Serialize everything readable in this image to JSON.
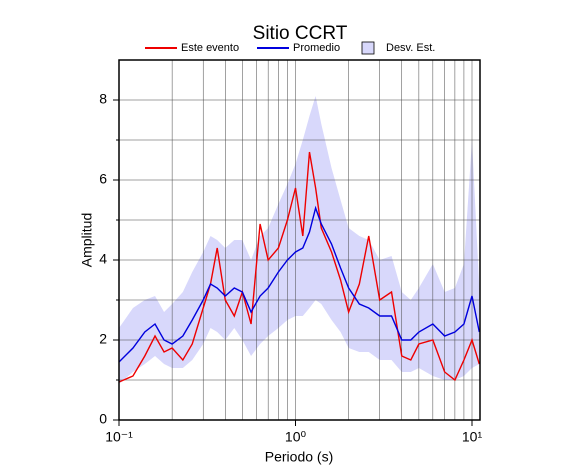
{
  "chart_data": {
    "type": "line",
    "title": "Sitio CCRT",
    "xlabel": "Periodo (s)",
    "ylabel": "Amplitud",
    "xscale": "log",
    "grid": true,
    "xlim": [
      0.1,
      11.1
    ],
    "ylim": [
      0,
      9
    ],
    "xticks": [
      {
        "value": 0.1,
        "label": "10⁻¹"
      },
      {
        "value": 1,
        "label": "10⁰"
      },
      {
        "value": 10,
        "label": "10¹"
      }
    ],
    "xminor": [
      0.2,
      0.3,
      0.4,
      0.5,
      0.6,
      0.7,
      0.8,
      0.9,
      2,
      3,
      4,
      5,
      6,
      7,
      8,
      9
    ],
    "yticks": [
      0,
      2,
      4,
      6,
      8
    ],
    "yminor": [
      1,
      3,
      5,
      7
    ],
    "x": [
      0.1,
      0.12,
      0.14,
      0.16,
      0.18,
      0.2,
      0.23,
      0.26,
      0.3,
      0.33,
      0.36,
      0.4,
      0.45,
      0.5,
      0.56,
      0.63,
      0.7,
      0.8,
      0.9,
      1.0,
      1.1,
      1.2,
      1.3,
      1.4,
      1.6,
      1.8,
      2.0,
      2.3,
      2.6,
      3.0,
      3.5,
      4,
      4.5,
      5,
      6,
      7,
      8,
      9,
      10,
      11
    ],
    "series": [
      {
        "name": "Este evento",
        "color": "#ee0000",
        "values": [
          0.95,
          1.1,
          1.6,
          2.1,
          1.7,
          1.8,
          1.5,
          1.9,
          2.8,
          3.4,
          4.3,
          3.0,
          2.6,
          3.2,
          2.4,
          4.9,
          4.0,
          4.3,
          5.0,
          5.8,
          4.6,
          6.7,
          5.8,
          4.8,
          4.2,
          3.5,
          2.7,
          3.4,
          4.6,
          3.0,
          3.2,
          1.6,
          1.5,
          1.9,
          2.0,
          1.2,
          1.0,
          1.5,
          2.0,
          1.4
        ]
      },
      {
        "name": "Promedio",
        "color": "#0000dd",
        "values": [
          1.45,
          1.8,
          2.2,
          2.4,
          2.0,
          1.9,
          2.1,
          2.5,
          3.0,
          3.4,
          3.3,
          3.1,
          3.3,
          3.2,
          2.7,
          3.1,
          3.3,
          3.7,
          4.0,
          4.2,
          4.3,
          4.7,
          5.3,
          4.9,
          4.4,
          3.8,
          3.3,
          2.9,
          2.8,
          2.6,
          2.6,
          2.0,
          2.0,
          2.2,
          2.4,
          2.1,
          2.2,
          2.4,
          3.1,
          2.2
        ]
      },
      {
        "name": "Desv. Est.",
        "color": "#d8d8fb",
        "upper": [
          2.3,
          2.8,
          3.0,
          3.1,
          2.7,
          2.9,
          3.2,
          3.7,
          4.2,
          4.6,
          4.5,
          4.3,
          4.5,
          4.5,
          4.0,
          4.6,
          4.8,
          5.4,
          5.9,
          6.4,
          7.0,
          7.6,
          8.1,
          7.4,
          6.3,
          5.5,
          4.8,
          4.6,
          4.5,
          4.0,
          4.1,
          3.2,
          3.0,
          3.3,
          3.9,
          3.2,
          3.3,
          3.9,
          7.0,
          3.3
        ],
        "lower": [
          0.9,
          1.2,
          1.4,
          1.6,
          1.4,
          1.3,
          1.3,
          1.5,
          1.9,
          2.3,
          2.2,
          2.0,
          2.3,
          2.0,
          1.6,
          1.9,
          2.1,
          2.3,
          2.5,
          2.6,
          2.6,
          2.8,
          3.0,
          2.9,
          2.5,
          2.2,
          1.8,
          1.7,
          1.7,
          1.5,
          1.5,
          1.2,
          1.2,
          1.3,
          1.1,
          1.0,
          1.0,
          1.1,
          1.3,
          1.4
        ]
      }
    ]
  }
}
